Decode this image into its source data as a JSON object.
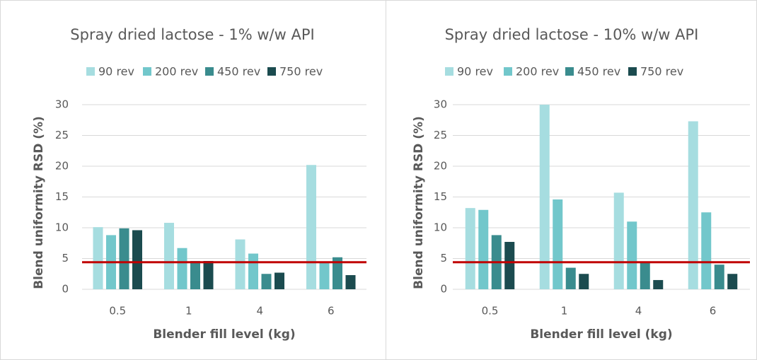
{
  "chart_data": [
    {
      "type": "bar",
      "title": "Spray dried lactose - 1% w/w API",
      "x_label": "Blender fill level (kg)",
      "y_label": "Blend uniformity RSD (%)",
      "categories": [
        "0.5",
        "1",
        "4",
        "6"
      ],
      "series": [
        {
          "name": "90 rev",
          "color": "#a6dde0",
          "values": [
            10.1,
            10.8,
            8.1,
            20.2
          ]
        },
        {
          "name": "200 rev",
          "color": "#72c7cb",
          "values": [
            8.8,
            6.7,
            5.8,
            4.3
          ]
        },
        {
          "name": "450 rev",
          "color": "#3a8c8e",
          "values": [
            9.9,
            4.6,
            2.5,
            5.2
          ]
        },
        {
          "name": "750 rev",
          "color": "#1b4b4f",
          "values": [
            9.6,
            4.6,
            2.7,
            2.3
          ]
        }
      ],
      "ylim": [
        0,
        30
      ],
      "yticks": [
        0,
        5,
        10,
        15,
        20,
        25,
        30
      ],
      "grid": true,
      "reference_line": {
        "value": 4.4,
        "color": "#c00000"
      }
    },
    {
      "type": "bar",
      "title": "Spray dried lactose - 10% w/w API",
      "x_label": "Blender fill level (kg)",
      "y_label": "Blend uniformity RSD (%)",
      "categories": [
        "0.5",
        "1",
        "4",
        "6"
      ],
      "series": [
        {
          "name": "90 rev",
          "color": "#a6dde0",
          "values": [
            13.2,
            30,
            15.7,
            27.3
          ]
        },
        {
          "name": "200 rev",
          "color": "#72c7cb",
          "values": [
            12.9,
            14.6,
            11.0,
            12.5
          ]
        },
        {
          "name": "450 rev",
          "color": "#3a8c8e",
          "values": [
            8.8,
            3.5,
            4.5,
            4.0
          ]
        },
        {
          "name": "750 rev",
          "color": "#1b4b4f",
          "values": [
            7.7,
            2.5,
            1.5,
            2.5
          ]
        }
      ],
      "ylim": [
        0,
        30
      ],
      "yticks": [
        0,
        5,
        10,
        15,
        20,
        25,
        30
      ],
      "grid": true,
      "reference_line": {
        "value": 4.4,
        "color": "#c00000"
      }
    }
  ]
}
